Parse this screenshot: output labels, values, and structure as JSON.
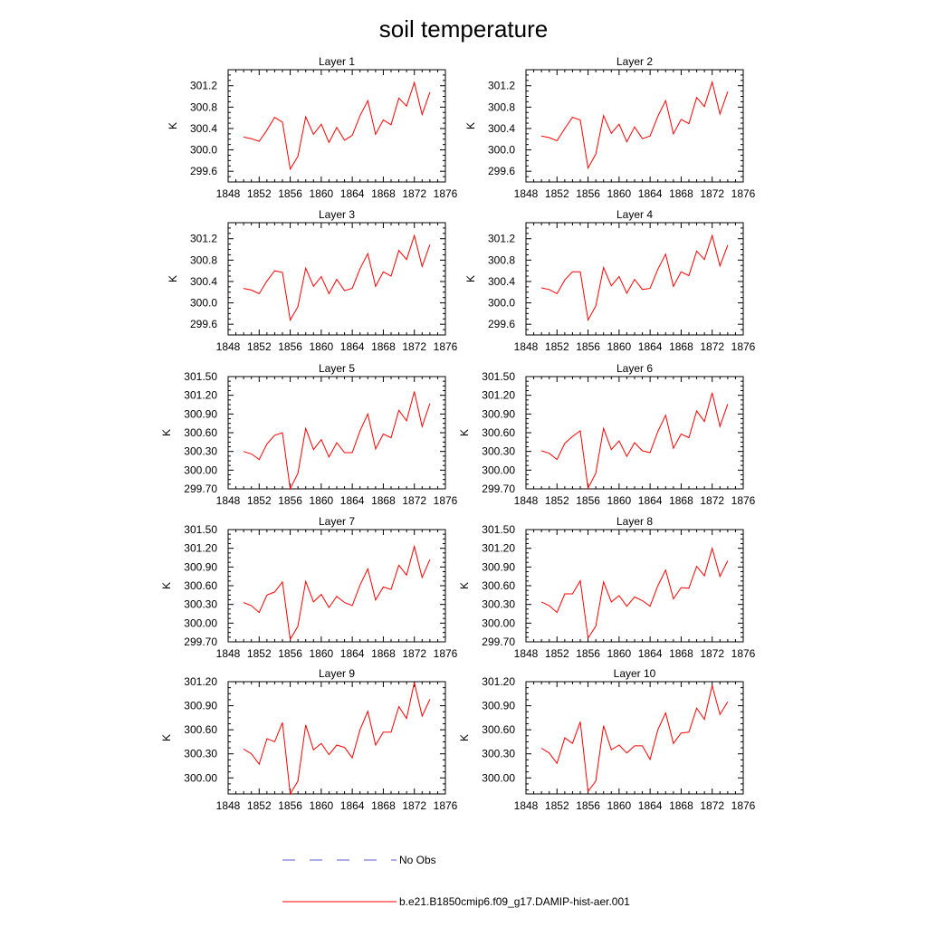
{
  "title": "soil temperature",
  "legend": {
    "obs_label": "No Obs",
    "model_label": "b.e21.B1850cmip6.f09_g17.DAMIP-hist-aer.001",
    "obs_color": "#5a5acd",
    "model_color": "#ff0000"
  },
  "chart_data": [
    {
      "type": "line",
      "title": "Layer 1",
      "ylabel": "K",
      "xlim": [
        1848,
        1876
      ],
      "xticks": [
        "1848",
        "1852",
        "1856",
        "1860",
        "1864",
        "1868",
        "1872",
        "1876"
      ],
      "ylim": [
        299.4,
        301.5
      ],
      "yticks": [
        "299.6",
        "300.0",
        "300.4",
        "300.8",
        "301.2"
      ],
      "series": [
        {
          "x": [
            1850,
            1851,
            1852,
            1853,
            1854,
            1855,
            1856,
            1857,
            1858,
            1859,
            1860,
            1861,
            1862,
            1863,
            1864,
            1865,
            1866,
            1867,
            1868,
            1869,
            1870,
            1871,
            1872,
            1873,
            1874
          ],
          "values": [
            300.24,
            300.21,
            300.16,
            300.37,
            300.61,
            300.52,
            299.64,
            299.88,
            300.62,
            300.29,
            300.48,
            300.14,
            300.42,
            300.18,
            300.27,
            300.64,
            300.92,
            300.29,
            300.56,
            300.47,
            300.97,
            300.82,
            301.26,
            300.66,
            301.08
          ]
        }
      ]
    },
    {
      "type": "line",
      "title": "Layer 2",
      "ylabel": "K",
      "xlim": [
        1848,
        1876
      ],
      "xticks": [
        "1848",
        "1852",
        "1856",
        "1860",
        "1864",
        "1868",
        "1872",
        "1876"
      ],
      "ylim": [
        299.4,
        301.5
      ],
      "yticks": [
        "299.6",
        "300.0",
        "300.4",
        "300.8",
        "301.2"
      ],
      "series": [
        {
          "x": [
            1850,
            1851,
            1852,
            1853,
            1854,
            1855,
            1856,
            1857,
            1858,
            1859,
            1860,
            1861,
            1862,
            1863,
            1864,
            1865,
            1866,
            1867,
            1868,
            1869,
            1870,
            1871,
            1872,
            1873,
            1874
          ],
          "values": [
            300.26,
            300.23,
            300.17,
            300.4,
            300.61,
            300.56,
            299.66,
            299.92,
            300.64,
            300.31,
            300.48,
            300.15,
            300.43,
            300.21,
            300.26,
            300.63,
            300.92,
            300.3,
            300.57,
            300.49,
            300.98,
            300.81,
            301.27,
            300.67,
            301.09
          ]
        }
      ]
    },
    {
      "type": "line",
      "title": "Layer 3",
      "ylabel": "K",
      "xlim": [
        1848,
        1876
      ],
      "xticks": [
        "1848",
        "1852",
        "1856",
        "1860",
        "1864",
        "1868",
        "1872",
        "1876"
      ],
      "ylim": [
        299.4,
        301.5
      ],
      "yticks": [
        "299.6",
        "300.0",
        "300.4",
        "300.8",
        "301.2"
      ],
      "series": [
        {
          "x": [
            1850,
            1851,
            1852,
            1853,
            1854,
            1855,
            1856,
            1857,
            1858,
            1859,
            1860,
            1861,
            1862,
            1863,
            1864,
            1865,
            1866,
            1867,
            1868,
            1869,
            1870,
            1871,
            1872,
            1873,
            1874
          ],
          "values": [
            300.27,
            300.24,
            300.17,
            300.41,
            300.6,
            300.57,
            299.68,
            299.93,
            300.65,
            300.31,
            300.49,
            300.17,
            300.44,
            300.23,
            300.27,
            300.64,
            300.92,
            300.31,
            300.58,
            300.5,
            300.98,
            300.81,
            301.26,
            300.68,
            301.09
          ]
        }
      ]
    },
    {
      "type": "line",
      "title": "Layer 4",
      "ylabel": "K",
      "xlim": [
        1848,
        1876
      ],
      "xticks": [
        "1848",
        "1852",
        "1856",
        "1860",
        "1864",
        "1868",
        "1872",
        "1876"
      ],
      "ylim": [
        299.4,
        301.5
      ],
      "yticks": [
        "299.6",
        "300.0",
        "300.4",
        "300.8",
        "301.2"
      ],
      "series": [
        {
          "x": [
            1850,
            1851,
            1852,
            1853,
            1854,
            1855,
            1856,
            1857,
            1858,
            1859,
            1860,
            1861,
            1862,
            1863,
            1864,
            1865,
            1866,
            1867,
            1868,
            1869,
            1870,
            1871,
            1872,
            1873,
            1874
          ],
          "values": [
            300.28,
            300.25,
            300.17,
            300.43,
            300.58,
            300.58,
            299.68,
            299.94,
            300.66,
            300.32,
            300.49,
            300.18,
            300.44,
            300.25,
            300.27,
            300.63,
            300.91,
            300.31,
            300.58,
            300.51,
            300.97,
            300.81,
            301.26,
            300.69,
            301.08
          ]
        }
      ]
    },
    {
      "type": "line",
      "title": "Layer 5",
      "ylabel": "K",
      "xlim": [
        1848,
        1876
      ],
      "xticks": [
        "1848",
        "1852",
        "1856",
        "1860",
        "1864",
        "1868",
        "1872",
        "1876"
      ],
      "ylim": [
        299.7,
        301.5
      ],
      "yticks": [
        "299.70",
        "300.00",
        "300.30",
        "300.60",
        "300.90",
        "301.20",
        "301.50"
      ],
      "series": [
        {
          "x": [
            1850,
            1851,
            1852,
            1853,
            1854,
            1855,
            1856,
            1857,
            1858,
            1859,
            1860,
            1861,
            1862,
            1863,
            1864,
            1865,
            1866,
            1867,
            1868,
            1869,
            1870,
            1871,
            1872,
            1873,
            1874
          ],
          "values": [
            300.3,
            300.26,
            300.17,
            300.42,
            300.56,
            300.6,
            299.7,
            299.95,
            300.67,
            300.33,
            300.49,
            300.21,
            300.44,
            300.28,
            300.28,
            300.63,
            300.9,
            300.34,
            300.58,
            300.52,
            300.96,
            300.79,
            301.26,
            300.7,
            301.07
          ]
        }
      ]
    },
    {
      "type": "line",
      "title": "Layer 6",
      "ylabel": "K",
      "xlim": [
        1848,
        1876
      ],
      "xticks": [
        "1848",
        "1852",
        "1856",
        "1860",
        "1864",
        "1868",
        "1872",
        "1876"
      ],
      "ylim": [
        299.7,
        301.5
      ],
      "yticks": [
        "299.70",
        "300.00",
        "300.30",
        "300.60",
        "300.90",
        "301.20",
        "301.50"
      ],
      "series": [
        {
          "x": [
            1850,
            1851,
            1852,
            1853,
            1854,
            1855,
            1856,
            1857,
            1858,
            1859,
            1860,
            1861,
            1862,
            1863,
            1864,
            1865,
            1866,
            1867,
            1868,
            1869,
            1870,
            1871,
            1872,
            1873,
            1874
          ],
          "values": [
            300.31,
            300.27,
            300.17,
            300.43,
            300.54,
            300.63,
            299.71,
            299.95,
            300.67,
            300.33,
            300.47,
            300.22,
            300.44,
            300.31,
            300.28,
            300.62,
            300.88,
            300.35,
            300.58,
            300.52,
            300.95,
            300.78,
            301.24,
            300.7,
            301.06
          ]
        }
      ]
    },
    {
      "type": "line",
      "title": "Layer 7",
      "ylabel": "K",
      "xlim": [
        1848,
        1876
      ],
      "xticks": [
        "1848",
        "1852",
        "1856",
        "1860",
        "1864",
        "1868",
        "1872",
        "1876"
      ],
      "ylim": [
        299.7,
        301.5
      ],
      "yticks": [
        "299.70",
        "300.00",
        "300.30",
        "300.60",
        "300.90",
        "301.20",
        "301.50"
      ],
      "series": [
        {
          "x": [
            1850,
            1851,
            1852,
            1853,
            1854,
            1855,
            1856,
            1857,
            1858,
            1859,
            1860,
            1861,
            1862,
            1863,
            1864,
            1865,
            1866,
            1867,
            1868,
            1869,
            1870,
            1871,
            1872,
            1873,
            1874
          ],
          "values": [
            300.33,
            300.28,
            300.17,
            300.45,
            300.5,
            300.66,
            299.74,
            299.95,
            300.67,
            300.34,
            300.46,
            300.25,
            300.43,
            300.33,
            300.28,
            300.61,
            300.87,
            300.37,
            300.58,
            300.54,
            300.93,
            300.77,
            301.23,
            300.73,
            301.02
          ]
        }
      ]
    },
    {
      "type": "line",
      "title": "Layer 8",
      "ylabel": "K",
      "xlim": [
        1848,
        1876
      ],
      "xticks": [
        "1848",
        "1852",
        "1856",
        "1860",
        "1864",
        "1868",
        "1872",
        "1876"
      ],
      "ylim": [
        299.7,
        301.5
      ],
      "yticks": [
        "299.70",
        "300.00",
        "300.30",
        "300.60",
        "300.90",
        "301.20",
        "301.50"
      ],
      "series": [
        {
          "x": [
            1850,
            1851,
            1852,
            1853,
            1854,
            1855,
            1856,
            1857,
            1858,
            1859,
            1860,
            1861,
            1862,
            1863,
            1864,
            1865,
            1866,
            1867,
            1868,
            1869,
            1870,
            1871,
            1872,
            1873,
            1874
          ],
          "values": [
            300.34,
            300.28,
            300.17,
            300.47,
            300.47,
            300.68,
            299.76,
            299.95,
            300.66,
            300.34,
            300.44,
            300.27,
            300.42,
            300.36,
            300.27,
            300.6,
            300.85,
            300.39,
            300.57,
            300.56,
            300.91,
            300.76,
            301.2,
            300.75,
            301.0
          ]
        }
      ]
    },
    {
      "type": "line",
      "title": "Layer 9",
      "ylabel": "K",
      "xlim": [
        1848,
        1876
      ],
      "xticks": [
        "1848",
        "1852",
        "1856",
        "1860",
        "1864",
        "1868",
        "1872",
        "1876"
      ],
      "ylim": [
        299.8,
        301.2
      ],
      "yticks": [
        "300.00",
        "300.30",
        "300.60",
        "300.90",
        "301.20"
      ],
      "series": [
        {
          "x": [
            1850,
            1851,
            1852,
            1853,
            1854,
            1855,
            1856,
            1857,
            1858,
            1859,
            1860,
            1861,
            1862,
            1863,
            1864,
            1865,
            1866,
            1867,
            1868,
            1869,
            1870,
            1871,
            1872,
            1873,
            1874
          ],
          "values": [
            300.36,
            300.3,
            300.17,
            300.49,
            300.45,
            300.69,
            299.8,
            299.96,
            300.66,
            300.35,
            300.43,
            300.29,
            300.41,
            300.38,
            300.25,
            300.6,
            300.83,
            300.41,
            300.57,
            300.57,
            300.89,
            300.74,
            301.19,
            300.77,
            300.98
          ]
        }
      ]
    },
    {
      "type": "line",
      "title": "Layer 10",
      "ylabel": "K",
      "xlim": [
        1848,
        1876
      ],
      "xticks": [
        "1848",
        "1852",
        "1856",
        "1860",
        "1864",
        "1868",
        "1872",
        "1876"
      ],
      "ylim": [
        299.8,
        301.2
      ],
      "yticks": [
        "300.00",
        "300.30",
        "300.60",
        "300.90",
        "301.20"
      ],
      "series": [
        {
          "x": [
            1850,
            1851,
            1852,
            1853,
            1854,
            1855,
            1856,
            1857,
            1858,
            1859,
            1860,
            1861,
            1862,
            1863,
            1864,
            1865,
            1866,
            1867,
            1868,
            1869,
            1870,
            1871,
            1872,
            1873,
            1874
          ],
          "values": [
            300.37,
            300.31,
            300.18,
            300.5,
            300.43,
            300.7,
            299.83,
            299.96,
            300.65,
            300.35,
            300.41,
            300.31,
            300.4,
            300.4,
            300.23,
            300.6,
            300.81,
            300.43,
            300.56,
            300.57,
            300.87,
            300.73,
            301.15,
            300.79,
            300.95
          ]
        }
      ]
    }
  ]
}
